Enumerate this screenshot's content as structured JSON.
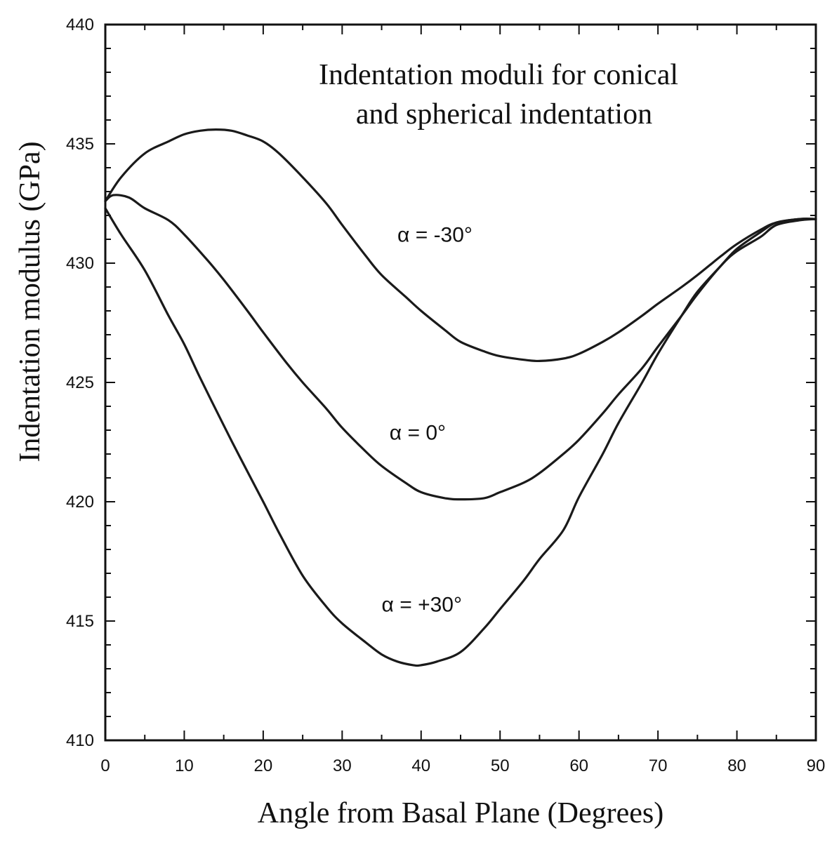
{
  "chart_data": {
    "type": "line",
    "title_lines": [
      "Indentation moduli for conical",
      "and spherical indentation"
    ],
    "xlabel": "Angle from Basal Plane (Degrees)",
    "ylabel": "Indentation modulus (GPa)",
    "xlim": [
      0,
      90
    ],
    "ylim": [
      410,
      440
    ],
    "xticks": [
      0,
      10,
      20,
      30,
      40,
      50,
      60,
      70,
      80,
      90
    ],
    "yticks": [
      410,
      415,
      420,
      425,
      430,
      435,
      440
    ],
    "x_minor_step": 5,
    "y_minor_step": 1,
    "grid": false,
    "line_color": "#1a1a1a",
    "series": [
      {
        "name": "α = -30°",
        "label_at": [
          37,
          430.9
        ],
        "x": [
          0,
          2,
          5,
          8,
          10,
          12,
          14,
          16,
          18,
          20,
          22,
          25,
          28,
          30,
          33,
          35,
          38,
          40,
          43,
          45,
          48,
          50,
          53,
          55,
          58,
          60,
          63,
          65,
          68,
          70,
          73,
          75,
          78,
          80,
          83,
          85,
          88,
          90
        ],
        "y": [
          432.6,
          433.6,
          434.6,
          435.1,
          435.4,
          435.55,
          435.6,
          435.55,
          435.35,
          435.1,
          434.6,
          433.6,
          432.5,
          431.6,
          430.3,
          429.5,
          428.6,
          428.0,
          427.2,
          426.7,
          426.3,
          426.1,
          425.95,
          425.9,
          426.0,
          426.2,
          426.7,
          427.1,
          427.8,
          428.3,
          429.0,
          429.5,
          430.3,
          430.8,
          431.4,
          431.7,
          431.85,
          431.85
        ]
      },
      {
        "name": "α = 0°",
        "label_at": [
          36,
          422.6
        ],
        "x": [
          0,
          1,
          3,
          5,
          8,
          10,
          13,
          15,
          18,
          20,
          23,
          25,
          28,
          30,
          33,
          35,
          38,
          40,
          43,
          45,
          48,
          50,
          53,
          55,
          58,
          60,
          63,
          65,
          68,
          70,
          73,
          75,
          78,
          80,
          83,
          85,
          88,
          90
        ],
        "y": [
          432.6,
          432.85,
          432.75,
          432.3,
          431.8,
          431.2,
          430.1,
          429.3,
          428.0,
          427.1,
          425.8,
          425.0,
          423.9,
          423.1,
          422.1,
          421.5,
          420.8,
          420.4,
          420.15,
          420.1,
          420.15,
          420.4,
          420.8,
          421.2,
          422.0,
          422.6,
          423.7,
          424.5,
          425.6,
          426.5,
          427.8,
          428.7,
          429.9,
          430.5,
          431.1,
          431.6,
          431.8,
          431.85
        ]
      },
      {
        "name": "α = +30°",
        "label_at": [
          35,
          415.4
        ],
        "x": [
          0,
          2,
          5,
          8,
          10,
          12,
          15,
          17,
          20,
          22,
          25,
          28,
          30,
          33,
          35,
          37,
          39,
          40,
          42,
          45,
          48,
          50,
          53,
          55,
          58,
          60,
          63,
          65,
          68,
          70,
          73,
          75,
          78,
          80,
          83,
          85,
          88,
          90
        ],
        "y": [
          432.3,
          431.2,
          429.7,
          427.8,
          426.6,
          425.2,
          423.2,
          421.9,
          420.0,
          418.7,
          416.9,
          415.6,
          414.9,
          414.1,
          413.6,
          413.3,
          413.15,
          413.15,
          413.3,
          413.7,
          414.7,
          415.5,
          416.7,
          417.6,
          418.8,
          420.2,
          422.0,
          423.3,
          425.0,
          426.2,
          427.8,
          428.8,
          429.9,
          430.6,
          431.3,
          431.7,
          431.85,
          431.85
        ]
      }
    ]
  }
}
